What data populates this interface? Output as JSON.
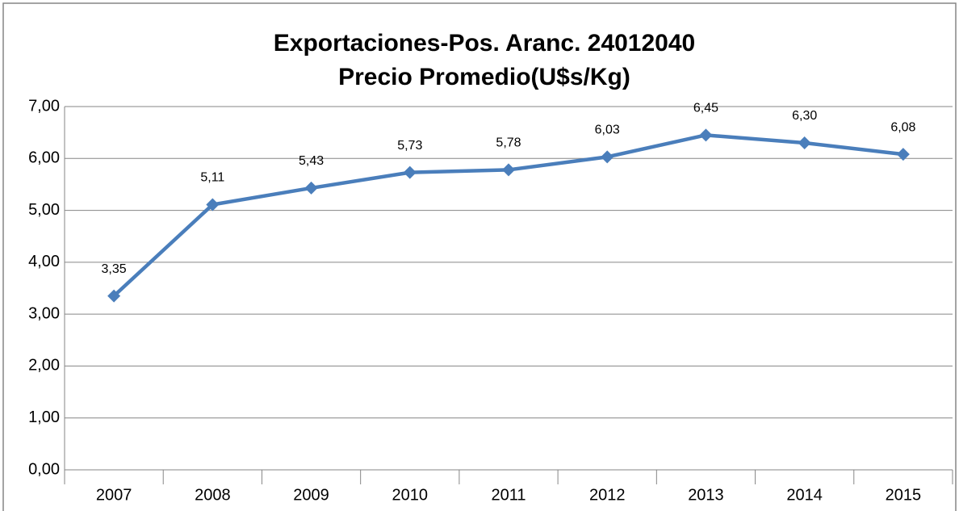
{
  "chart_data": {
    "type": "line",
    "title": "Exportaciones-Pos. Aranc. 24012040",
    "subtitle": "Precio Promedio(U$s/Kg)",
    "categories": [
      "2007",
      "2008",
      "2009",
      "2010",
      "2011",
      "2012",
      "2013",
      "2014",
      "2015"
    ],
    "values": [
      3.35,
      5.11,
      5.43,
      5.73,
      5.78,
      6.03,
      6.45,
      6.3,
      6.08
    ],
    "value_labels": [
      "3,35",
      "5,11",
      "5,43",
      "5,73",
      "5,78",
      "6,03",
      "6,45",
      "6,30",
      "6,08"
    ],
    "color": "#4a7ebb",
    "ylim": [
      0,
      7
    ],
    "yticks": [
      {
        "value": 0,
        "label": "0,00"
      },
      {
        "value": 1,
        "label": "1,00"
      },
      {
        "value": 2,
        "label": "2,00"
      },
      {
        "value": 3,
        "label": "3,00"
      },
      {
        "value": 4,
        "label": "4,00"
      },
      {
        "value": 5,
        "label": "5,00"
      },
      {
        "value": 6,
        "label": "6,00"
      },
      {
        "value": 7,
        "label": "7,00"
      }
    ],
    "grid": true
  }
}
